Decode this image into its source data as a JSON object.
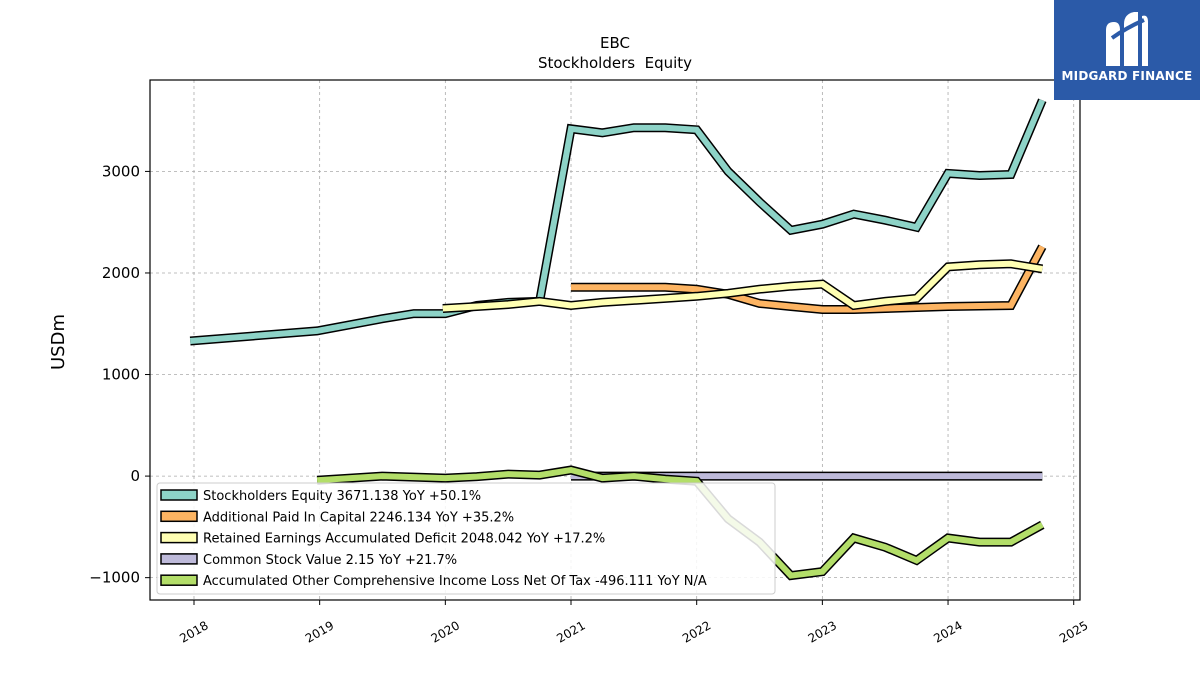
{
  "brand": {
    "name": "MIDGARD FINANCE",
    "logo_icon": "midgard-logo-icon",
    "color": "#2b5aa8"
  },
  "chart_data": {
    "type": "line",
    "title": "EBC",
    "subtitle": "Stockholders  Equity",
    "ylabel": "USDm",
    "xlabel": "",
    "xlim": [
      2017.65,
      2025.05
    ],
    "ylim": [
      -1220,
      3900
    ],
    "x_ticks": [
      "2018",
      "2019",
      "2020",
      "2021",
      "2022",
      "2023",
      "2024",
      "2025"
    ],
    "y_ticks": [
      -1000,
      0,
      1000,
      2000,
      3000
    ],
    "y_tick_labels": [
      "−1000",
      "0",
      "1000",
      "2000",
      "3000"
    ],
    "grid": true,
    "legend_position": "lower-left",
    "series": [
      {
        "name": "Stockholders Equity  3671.138 YoY +50.1%",
        "color": "#8dd3c7",
        "points": [
          [
            2017.97,
            1330
          ],
          [
            2018.98,
            1430
          ],
          [
            2019.5,
            1550
          ],
          [
            2019.75,
            1600
          ],
          [
            2020.0,
            1600
          ],
          [
            2020.25,
            1680
          ],
          [
            2020.5,
            1710
          ],
          [
            2020.75,
            1720
          ],
          [
            2021.0,
            3420
          ],
          [
            2021.25,
            3380
          ],
          [
            2021.5,
            3430
          ],
          [
            2021.75,
            3430
          ],
          [
            2022.0,
            3410
          ],
          [
            2022.25,
            3000
          ],
          [
            2022.5,
            2700
          ],
          [
            2022.75,
            2420
          ],
          [
            2023.0,
            2480
          ],
          [
            2023.25,
            2580
          ],
          [
            2023.5,
            2520
          ],
          [
            2023.75,
            2450
          ],
          [
            2024.0,
            2980
          ],
          [
            2024.25,
            2960
          ],
          [
            2024.5,
            2970
          ],
          [
            2024.75,
            3700
          ]
        ]
      },
      {
        "name": "Additional Paid In Capital  2246.134 YoY +35.2%",
        "color": "#fdb462",
        "points": [
          [
            2021.0,
            1860
          ],
          [
            2021.25,
            1860
          ],
          [
            2021.5,
            1860
          ],
          [
            2021.75,
            1860
          ],
          [
            2022.0,
            1840
          ],
          [
            2022.25,
            1790
          ],
          [
            2022.5,
            1700
          ],
          [
            2022.75,
            1670
          ],
          [
            2023.0,
            1640
          ],
          [
            2023.25,
            1640
          ],
          [
            2023.5,
            1650
          ],
          [
            2023.75,
            1660
          ],
          [
            2024.0,
            1670
          ],
          [
            2024.25,
            1675
          ],
          [
            2024.5,
            1680
          ],
          [
            2024.75,
            2260
          ]
        ]
      },
      {
        "name": "Retained Earnings Accumulated Deficit  2048.042 YoY +17.2%",
        "color": "#ffffb3",
        "points": [
          [
            2019.98,
            1650
          ],
          [
            2020.25,
            1670
          ],
          [
            2020.5,
            1690
          ],
          [
            2020.75,
            1720
          ],
          [
            2021.0,
            1680
          ],
          [
            2021.25,
            1710
          ],
          [
            2021.5,
            1730
          ],
          [
            2021.75,
            1750
          ],
          [
            2022.0,
            1770
          ],
          [
            2022.25,
            1800
          ],
          [
            2022.5,
            1840
          ],
          [
            2022.75,
            1870
          ],
          [
            2023.0,
            1890
          ],
          [
            2023.25,
            1680
          ],
          [
            2023.5,
            1720
          ],
          [
            2023.75,
            1750
          ],
          [
            2024.0,
            2060
          ],
          [
            2024.25,
            2080
          ],
          [
            2024.5,
            2090
          ],
          [
            2024.75,
            2040
          ]
        ]
      },
      {
        "name": "Common Stock Value  2.15 YoY +21.7%",
        "color": "#bebada",
        "points": [
          [
            2021.0,
            0
          ],
          [
            2021.25,
            0
          ],
          [
            2021.5,
            0
          ],
          [
            2021.75,
            0
          ],
          [
            2022.0,
            0
          ],
          [
            2022.25,
            0
          ],
          [
            2022.5,
            0
          ],
          [
            2022.75,
            0
          ],
          [
            2023.0,
            0
          ],
          [
            2023.25,
            0
          ],
          [
            2023.5,
            0
          ],
          [
            2023.75,
            0
          ],
          [
            2024.0,
            0
          ],
          [
            2024.25,
            0
          ],
          [
            2024.5,
            0
          ],
          [
            2024.75,
            0
          ]
        ]
      },
      {
        "name": "Accumulated Other Comprehensive Income Loss Net Of Tax  -496.111 YoY N/A",
        "color": "#b3de69",
        "points": [
          [
            2018.98,
            -40
          ],
          [
            2019.5,
            0
          ],
          [
            2019.75,
            -10
          ],
          [
            2020.0,
            -20
          ],
          [
            2020.25,
            -5
          ],
          [
            2020.5,
            20
          ],
          [
            2020.75,
            10
          ],
          [
            2021.0,
            60
          ],
          [
            2021.25,
            -20
          ],
          [
            2021.5,
            0
          ],
          [
            2021.75,
            -30
          ],
          [
            2022.0,
            -50
          ],
          [
            2022.25,
            -420
          ],
          [
            2022.5,
            -650
          ],
          [
            2022.75,
            -980
          ],
          [
            2023.0,
            -940
          ],
          [
            2023.25,
            -610
          ],
          [
            2023.5,
            -700
          ],
          [
            2023.75,
            -830
          ],
          [
            2024.0,
            -610
          ],
          [
            2024.25,
            -650
          ],
          [
            2024.5,
            -650
          ],
          [
            2024.75,
            -480
          ]
        ]
      }
    ]
  }
}
